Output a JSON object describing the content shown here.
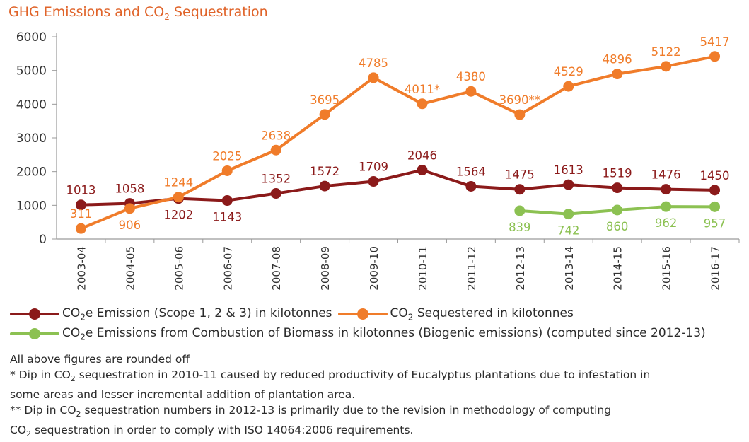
{
  "title_parts": {
    "pre": "GHG Emissions and CO",
    "sub": "2",
    "post": " Sequestration"
  },
  "chart_data": {
    "type": "line",
    "title": "GHG Emissions and CO2 Sequestration",
    "categories": [
      "2003-04",
      "2004-05",
      "2005-06",
      "2006-07",
      "2007-08",
      "2008-09",
      "2009-10",
      "2010-11",
      "2011-12",
      "2012-13",
      "2013-14",
      "2014-15",
      "2015-16",
      "2016-17"
    ],
    "ylim": [
      0,
      6000
    ],
    "yticks": [
      0,
      1000,
      2000,
      3000,
      4000,
      5000,
      6000
    ],
    "grid": false,
    "legend_placement": "bottom",
    "series": [
      {
        "name": "CO2e Emission (Scope 1, 2 & 3) in kilotonnes",
        "color": "#8b1a1a",
        "values": [
          1013,
          1058,
          1202,
          1143,
          1352,
          1572,
          1709,
          2046,
          1564,
          1475,
          1613,
          1519,
          1476,
          1450
        ],
        "labels": [
          "1013",
          "1058",
          "1202",
          "1143",
          "1352",
          "1572",
          "1709",
          "2046",
          "1564",
          "1475",
          "1613",
          "1519",
          "1476",
          "1450"
        ],
        "label_pos": [
          "above",
          "above",
          "below",
          "below",
          "above",
          "above",
          "above",
          "above",
          "above",
          "above",
          "above",
          "above",
          "above",
          "above"
        ]
      },
      {
        "name": "CO2 Sequestered in kilotonnes",
        "color": "#f07c2a",
        "values": [
          311,
          906,
          1244,
          2025,
          2638,
          3695,
          4785,
          4011,
          4380,
          3690,
          4529,
          4896,
          5122,
          5417
        ],
        "labels": [
          "311",
          "906",
          "1244",
          "2025",
          "2638",
          "3695",
          "4785",
          "4011*",
          "4380",
          "3690**",
          "4529",
          "4896",
          "5122",
          "5417"
        ],
        "label_pos": [
          "above",
          "below",
          "above",
          "above",
          "above",
          "above",
          "above",
          "above",
          "above",
          "above",
          "above",
          "above",
          "above",
          "above"
        ]
      },
      {
        "name": "CO2e Emissions from Combustion of Biomass in kilotonnes (Biogenic emissions)  (computed since 2012-13)",
        "color": "#8cc152",
        "values": [
          null,
          null,
          null,
          null,
          null,
          null,
          null,
          null,
          null,
          839,
          742,
          860,
          962,
          957
        ],
        "labels": [
          "",
          "",
          "",
          "",
          "",
          "",
          "",
          "",
          "",
          "839",
          "742",
          "860",
          "962",
          "957"
        ],
        "label_pos": [
          "below",
          "below",
          "below",
          "below",
          "below",
          "below",
          "below",
          "below",
          "below",
          "below",
          "below",
          "below",
          "below",
          "below"
        ]
      }
    ]
  },
  "legend": [
    {
      "pre": "CO",
      "sub": "2",
      "post": "e Emission (Scope 1, 2 & 3) in kilotonnes",
      "color": "#8b1a1a"
    },
    {
      "pre": "CO",
      "sub": "2",
      "post": " Sequestered in kilotonnes",
      "color": "#f07c2a"
    },
    {
      "pre": "CO",
      "sub": "2",
      "post": "e Emissions from Combustion of Biomass in kilotonnes (Biogenic emissions)  (computed since 2012-13)",
      "color": "#8cc152"
    }
  ],
  "notes": {
    "line1": "All above figures are rounded off",
    "line2_pre": "* Dip in CO",
    "line2_sub": "2",
    "line2_post": " sequestration in 2010-11 caused by reduced productivity of Eucalyptus plantations due to infestation in",
    "line3": "some areas and lesser incremental addition of plantation area.",
    "line4_pre": "** Dip in CO",
    "line4_sub": "2",
    "line4_post": " sequestration numbers in 2012-13 is primarily due to the revision in methodology of computing",
    "line5_pre": "CO",
    "line5_sub": "2",
    "line5_post": " sequestration in order to comply with ISO 14064:2006 requirements."
  }
}
